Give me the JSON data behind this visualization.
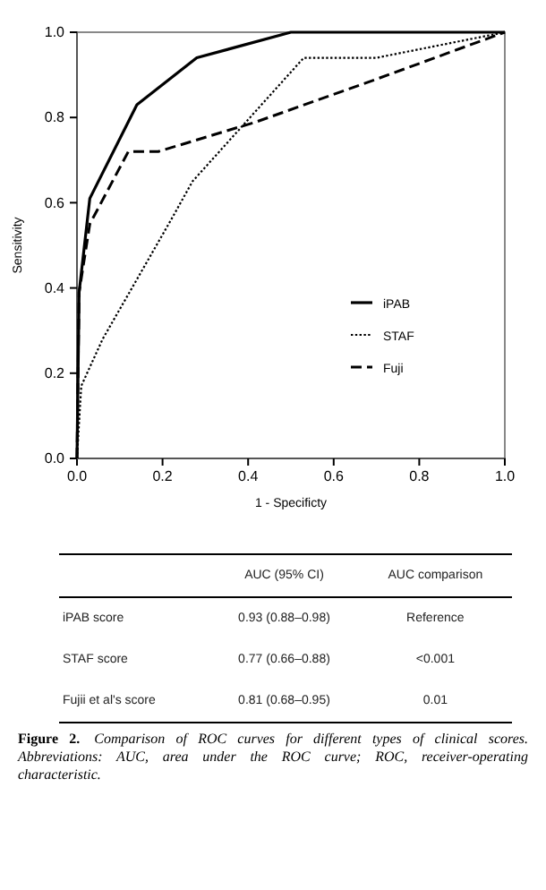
{
  "chart_data": {
    "type": "line",
    "xlabel": "1 - Specificty",
    "ylabel": "Sensitivity",
    "xlim": [
      0,
      1
    ],
    "ylim": [
      0,
      1
    ],
    "xticks": [
      {
        "value": 0,
        "label": "0.0"
      },
      {
        "value": 0.2,
        "label": "0.2"
      },
      {
        "value": 0.4,
        "label": "0.4"
      },
      {
        "value": 0.6,
        "label": "0.6"
      },
      {
        "value": 0.8,
        "label": "0.8"
      },
      {
        "value": 1,
        "label": "1.0"
      }
    ],
    "yticks": [
      {
        "value": 0,
        "label": "0.0"
      },
      {
        "value": 0.2,
        "label": "0.2"
      },
      {
        "value": 0.4,
        "label": "0.4"
      },
      {
        "value": 0.6,
        "label": "0.6"
      },
      {
        "value": 0.8,
        "label": "0.8"
      },
      {
        "value": 1,
        "label": "1.0"
      }
    ],
    "legend": "right",
    "grid": false,
    "marker": "none",
    "series": [
      {
        "name": "iPAB",
        "color": "#000000",
        "line_style": "solid",
        "x": [
          0,
          0.005,
          0.03,
          0.14,
          0.28,
          0.5,
          1
        ],
        "values": [
          0,
          0.39,
          0.61,
          0.83,
          0.94,
          1,
          1
        ]
      },
      {
        "name": "STAF",
        "color": "#000000",
        "line_style": "dotted",
        "x": [
          0,
          0.01,
          0.06,
          0.22,
          0.27,
          0.53,
          0.7,
          1
        ],
        "values": [
          0,
          0.17,
          0.28,
          0.56,
          0.65,
          0.94,
          0.94,
          1
        ]
      },
      {
        "name": "Fuji",
        "color": "#000000",
        "line_style": "dashed",
        "x": [
          0,
          0.005,
          0.03,
          0.12,
          0.19,
          0.42,
          0.7,
          1
        ],
        "values": [
          0,
          0.39,
          0.55,
          0.72,
          0.72,
          0.79,
          0.89,
          1
        ]
      }
    ],
    "annotations": [
      "AUC (95% CI)",
      "AUC comparison",
      "iPAB score",
      "0.93 (0.88–0.98)",
      "Reference",
      "STAF score",
      "0.77 (0.66–0.88)",
      "<0.001",
      "Fujii et al's score",
      "0.81 (0.68–0.95)",
      "0.01",
      "Figure 2.",
      "Comparison of ROC curves for different types of clinical scores. Abbreviations: AUC, area under the ROC curve; ROC, receiver-operating characteristic."
    ]
  }
}
